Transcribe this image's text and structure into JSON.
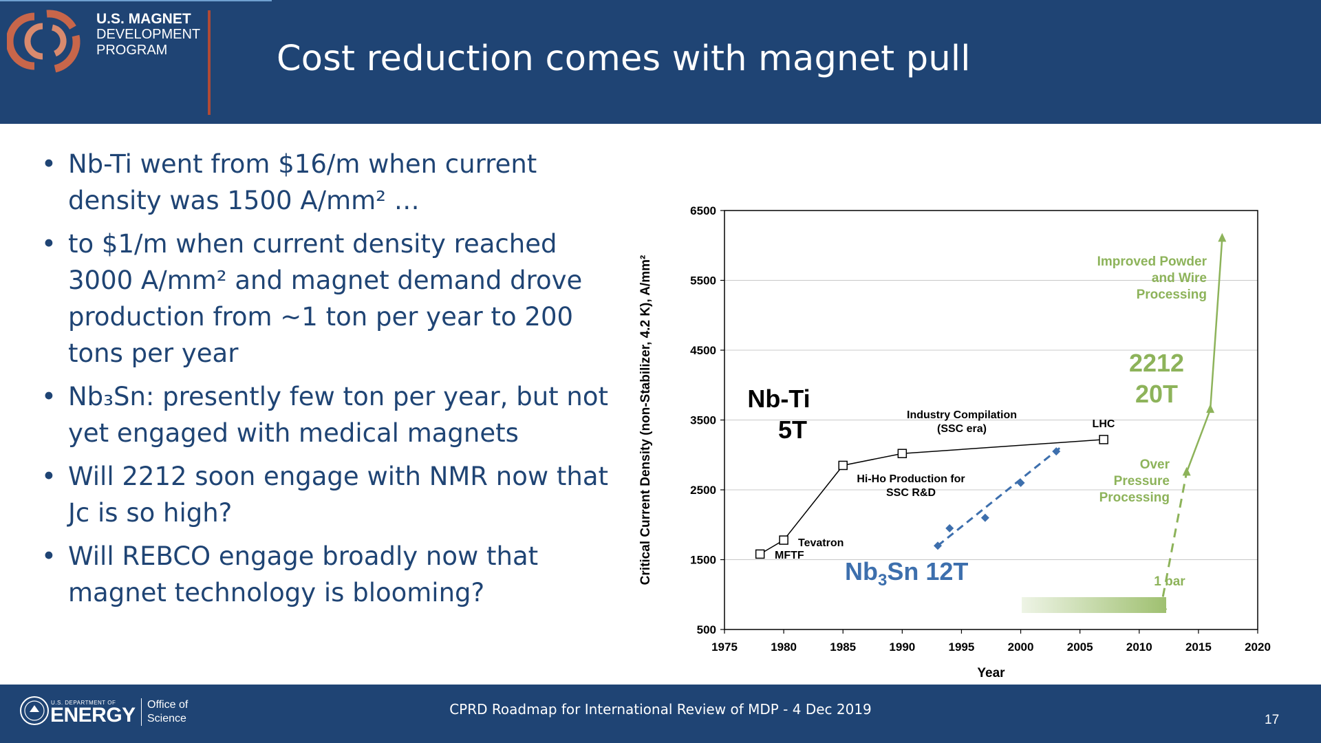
{
  "header": {
    "logo_line1": "U.S. MAGNET",
    "logo_line2": "DEVELOPMENT",
    "logo_line3": "PROGRAM",
    "title": "Cost reduction comes with magnet pull"
  },
  "bullets": [
    "Nb-Ti went from $16/m when current density was 1500 A/mm² …",
    "to $1/m when current density reached 3000 A/mm² and magnet demand drove production from ~1 ton per year to 200 tons per year",
    "Nb₃Sn: presently few ton per year, but not yet engaged with medical magnets",
    "Will 2212 soon engage with NMR now that Jc is so high?",
    "Will REBCO engage broadly now that magnet technology is blooming?"
  ],
  "chart_data": {
    "type": "line",
    "xlabel": "Year",
    "ylabel": "Critical Current Density (non-Stabilizer, 4.2 K), A/mm²",
    "xlim": [
      1975,
      2020
    ],
    "ylim": [
      500,
      6500
    ],
    "xticks": [
      1975,
      1980,
      1985,
      1990,
      1995,
      2000,
      2005,
      2010,
      2015,
      2020
    ],
    "yticks": [
      500,
      1500,
      2500,
      3500,
      4500,
      5500,
      6500
    ],
    "grid": "horizontal",
    "series": [
      {
        "name": "Nb-Ti 5T",
        "color": "#000000",
        "marker": "open-square",
        "line": "solid",
        "x": [
          1978,
          1980,
          1985,
          1990,
          2007
        ],
        "y": [
          1580,
          1780,
          2850,
          3020,
          3220
        ]
      },
      {
        "name": "Nb3Sn 12T",
        "color": "#3d6fad",
        "marker": "diamond",
        "line": "dashed",
        "x": [
          1993,
          1994,
          1997,
          2000,
          2003
        ],
        "y": [
          1700,
          1950,
          2100,
          2600,
          3050
        ]
      },
      {
        "name": "2212 20T",
        "color": "#8db35a",
        "marker": "triangle",
        "line": "solid",
        "x": [
          2009,
          2012,
          2014,
          2016,
          2017
        ],
        "y": [
          880,
          830,
          2750,
          3650,
          6100
        ]
      }
    ],
    "annotations": {
      "nbti_line1": "Nb-Ti",
      "nbti_line2": "5T",
      "nb3sn_pre": "Nb",
      "nb3sn_sub": "3",
      "nb3sn_post": "Sn 12T",
      "b2212_line1": "2212",
      "b2212_line2": "20T",
      "industry_line1": "Industry Compilation",
      "industry_line2": "(SSC era)",
      "hiho_line1": "Hi-Ho Production for",
      "hiho_line2": "SSC R&D",
      "tevatron": "Tevatron",
      "mftf": "MFTF",
      "lhc": "LHC",
      "powder_line1": "Improved Powder",
      "powder_line2": "and Wire",
      "powder_line3": "Processing",
      "over_line1": "Over",
      "over_line2": "Pressure",
      "over_line3": "Processing",
      "one_bar": "1 bar"
    }
  },
  "footer": {
    "doe_small": "U.S. DEPARTMENT OF",
    "doe_energy": "ENERGY",
    "office_line1": "Office of",
    "office_line2": "Science",
    "center_text": "CPRD Roadmap for International Review of MDP - 4 Dec 2019",
    "page_number": "17"
  }
}
